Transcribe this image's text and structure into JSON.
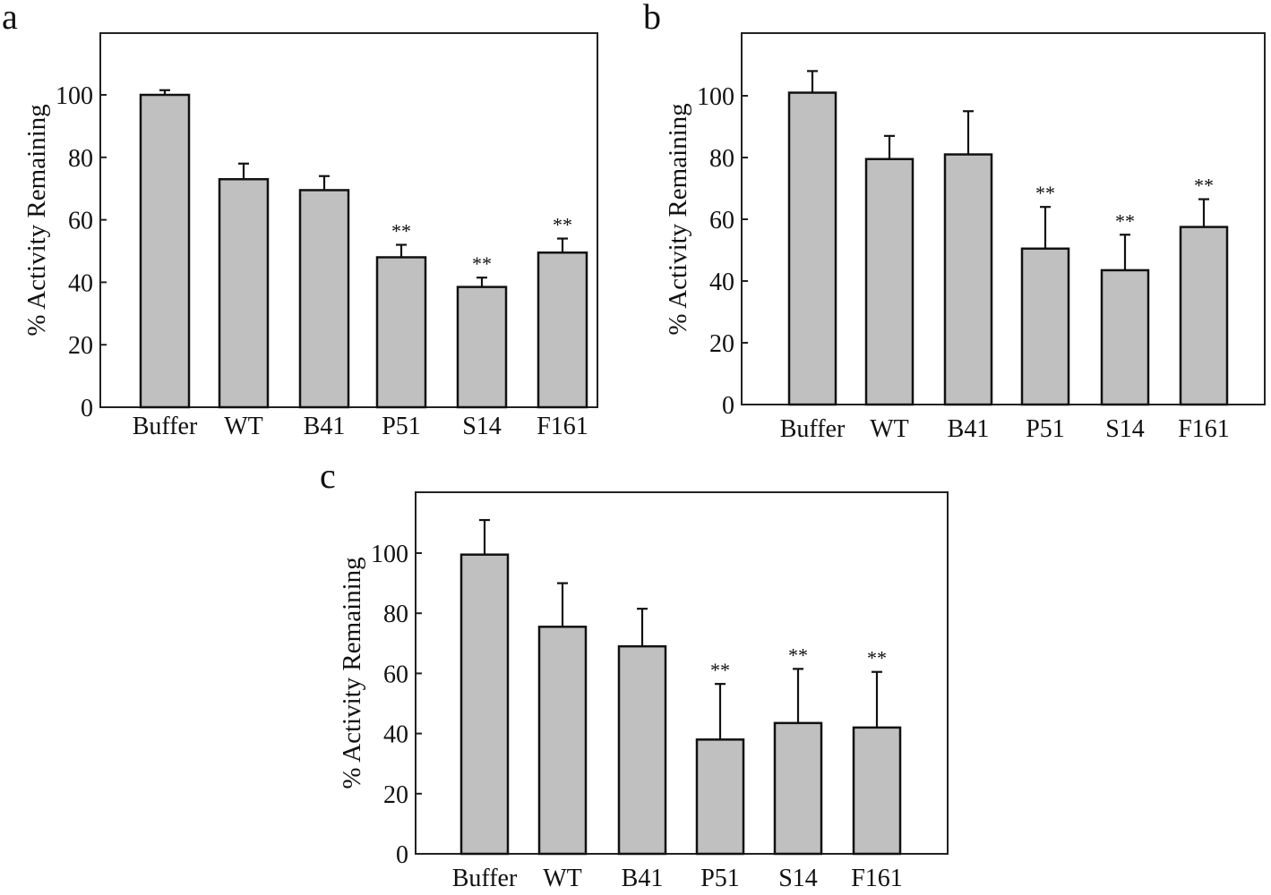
{
  "figure": {
    "panels": [
      "a",
      "b",
      "c"
    ]
  },
  "chart_data": [
    {
      "panel": "a",
      "type": "bar",
      "title": "",
      "xlabel": "",
      "ylabel": "% Activity Remaining",
      "ylim": [
        0,
        120
      ],
      "yticks": [
        0,
        20,
        40,
        60,
        80,
        100
      ],
      "categories": [
        "Buffer",
        "WT",
        "B41",
        "P51",
        "S14",
        "F161"
      ],
      "values": [
        100,
        73,
        69.5,
        48,
        38.5,
        49.5
      ],
      "errors": [
        1.5,
        5,
        4.5,
        4,
        3,
        4.5
      ],
      "significance": [
        "",
        "",
        "",
        "**",
        "**",
        "**"
      ]
    },
    {
      "panel": "b",
      "type": "bar",
      "title": "",
      "xlabel": "",
      "ylabel": "% Activity Remaining",
      "ylim": [
        0,
        120
      ],
      "yticks": [
        0,
        20,
        40,
        60,
        80,
        100
      ],
      "categories": [
        "Buffer",
        "WT",
        "B41",
        "P51",
        "S14",
        "F161"
      ],
      "values": [
        101,
        79.5,
        81,
        50.5,
        43.5,
        57.5
      ],
      "errors": [
        7,
        7.5,
        14,
        13.5,
        11.5,
        9
      ],
      "significance": [
        "",
        "",
        "",
        "**",
        "**",
        "**"
      ]
    },
    {
      "panel": "c",
      "type": "bar",
      "title": "",
      "xlabel": "",
      "ylabel": "% Activity Remaining",
      "ylim": [
        0,
        120
      ],
      "yticks": [
        0,
        20,
        40,
        60,
        80,
        100
      ],
      "categories": [
        "Buffer",
        "WT",
        "B41",
        "P51",
        "S14",
        "F161"
      ],
      "values": [
        99.5,
        75.5,
        69,
        38,
        43.5,
        42
      ],
      "errors": [
        11.5,
        14.5,
        12.5,
        18.5,
        18,
        18.5
      ],
      "significance": [
        "",
        "",
        "",
        "**",
        "**",
        "**"
      ]
    }
  ]
}
